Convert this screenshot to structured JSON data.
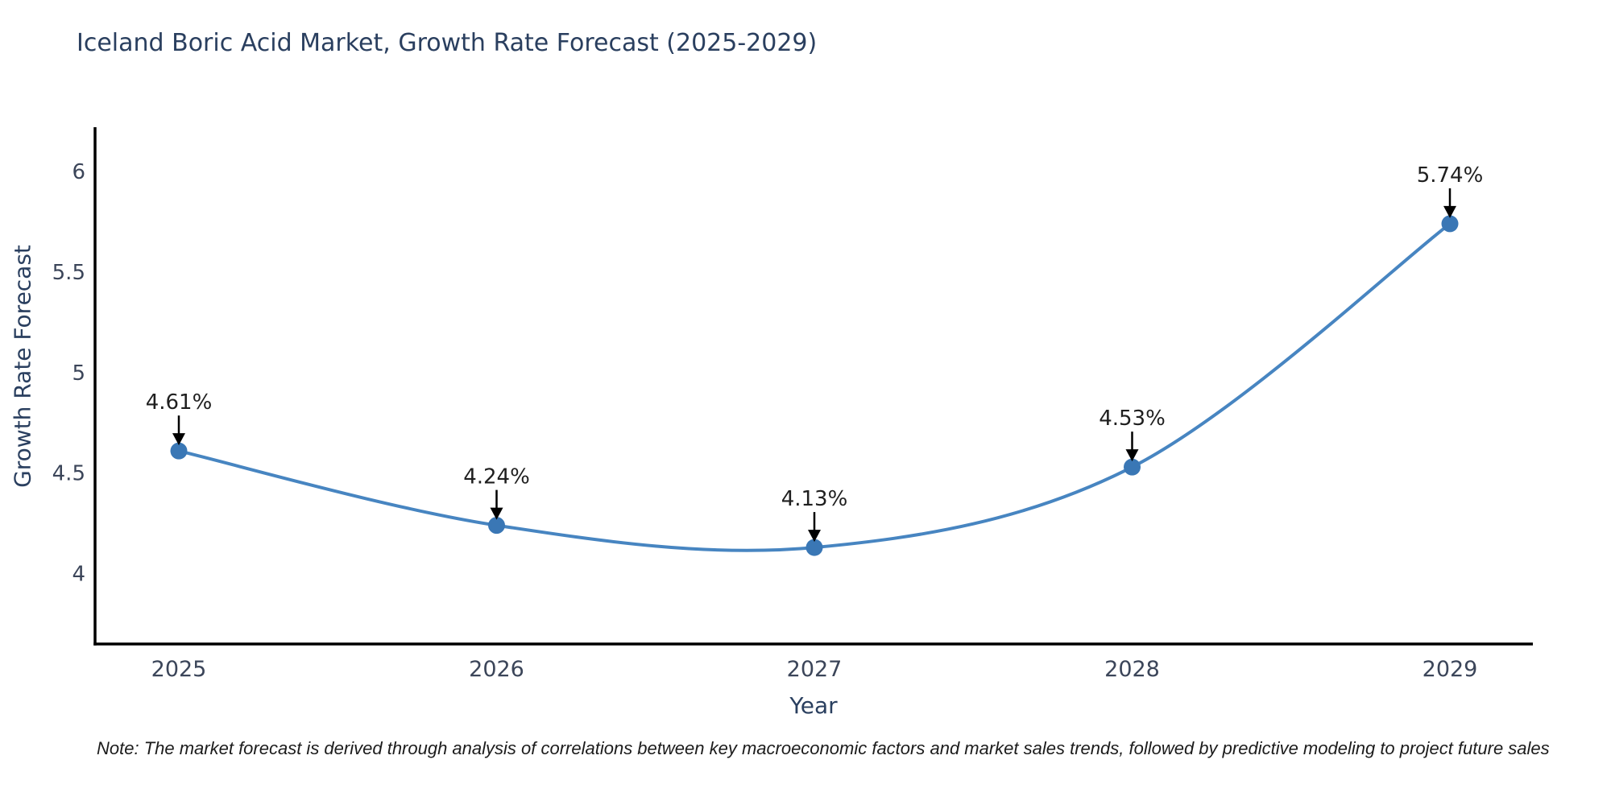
{
  "note": "Note: The market forecast is derived through analysis of correlations between key macroeconomic factors and market sales trends, followed by predictive modeling to project future sales",
  "chart_data": {
    "type": "line",
    "title": "Iceland Boric Acid Market, Growth Rate Forecast (2025-2029)",
    "xlabel": "Year",
    "ylabel": "Growth Rate Forecast",
    "categories": [
      "2025",
      "2026",
      "2027",
      "2028",
      "2029"
    ],
    "series": [
      {
        "name": "Growth Rate Forecast",
        "values": [
          4.61,
          4.24,
          4.13,
          4.53,
          5.74
        ],
        "point_labels": [
          "4.61%",
          "4.24%",
          "4.13%",
          "4.53%",
          "5.74%"
        ]
      }
    ],
    "yticks": [
      "4",
      "4.5",
      "5",
      "5.5",
      "6"
    ],
    "ytick_values": [
      4,
      4.5,
      5,
      5.5,
      6
    ],
    "ylim": [
      3.65,
      6.22
    ],
    "grid": false,
    "legend": "none",
    "line_shape": "spline",
    "annotation_arrows": true,
    "colors": {
      "line": "#4785c1",
      "marker": "#3a77b5",
      "axis": "#000000",
      "title_text": "#2a3f5f",
      "tick_text": "#3b4559",
      "annotation_text": "#1f1f1f",
      "note_text": "#1c1c1c",
      "background": "#ffffff"
    }
  }
}
